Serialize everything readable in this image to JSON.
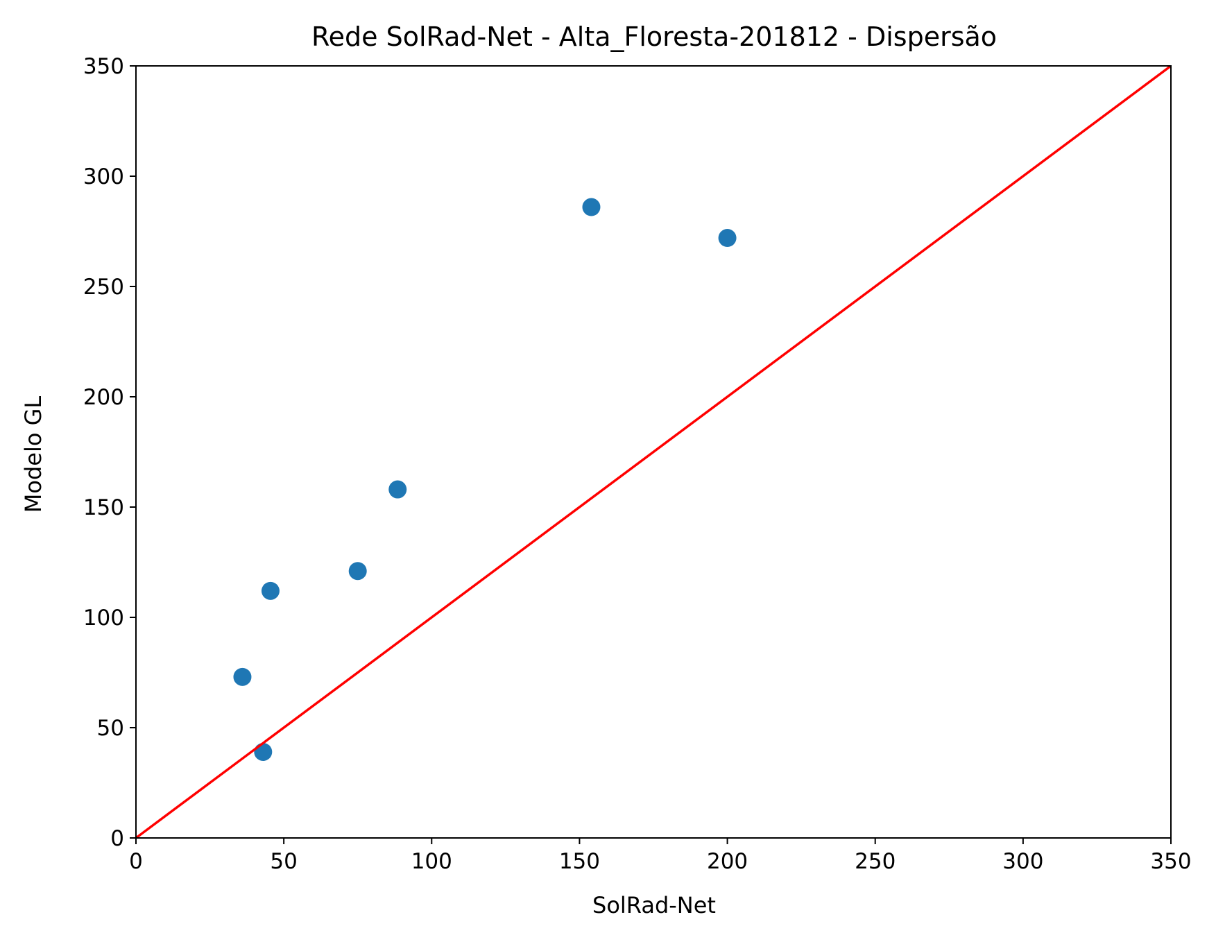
{
  "chart_data": {
    "type": "scatter",
    "title": "Rede SolRad-Net - Alta_Floresta-201812 - Dispersão",
    "xlabel": "SolRad-Net",
    "ylabel": "Modelo GL",
    "xlim": [
      0,
      350
    ],
    "ylim": [
      0,
      350
    ],
    "xticks": [
      "0",
      "50",
      "100",
      "150",
      "200",
      "250",
      "300",
      "350"
    ],
    "yticks": [
      "0",
      "50",
      "100",
      "150",
      "200",
      "250",
      "300",
      "350"
    ],
    "grid": false,
    "series": [
      {
        "points": [
          {
            "x": 36,
            "y": 73
          },
          {
            "x": 43,
            "y": 39
          },
          {
            "x": 45.5,
            "y": 112
          },
          {
            "x": 75,
            "y": 121
          },
          {
            "x": 88.5,
            "y": 158
          },
          {
            "x": 154,
            "y": 286
          },
          {
            "x": 200,
            "y": 272
          }
        ],
        "color": "#1f77b4"
      }
    ],
    "reference_line": {
      "from": [
        0,
        0
      ],
      "to": [
        350,
        350
      ],
      "color": "#ff0000"
    }
  }
}
